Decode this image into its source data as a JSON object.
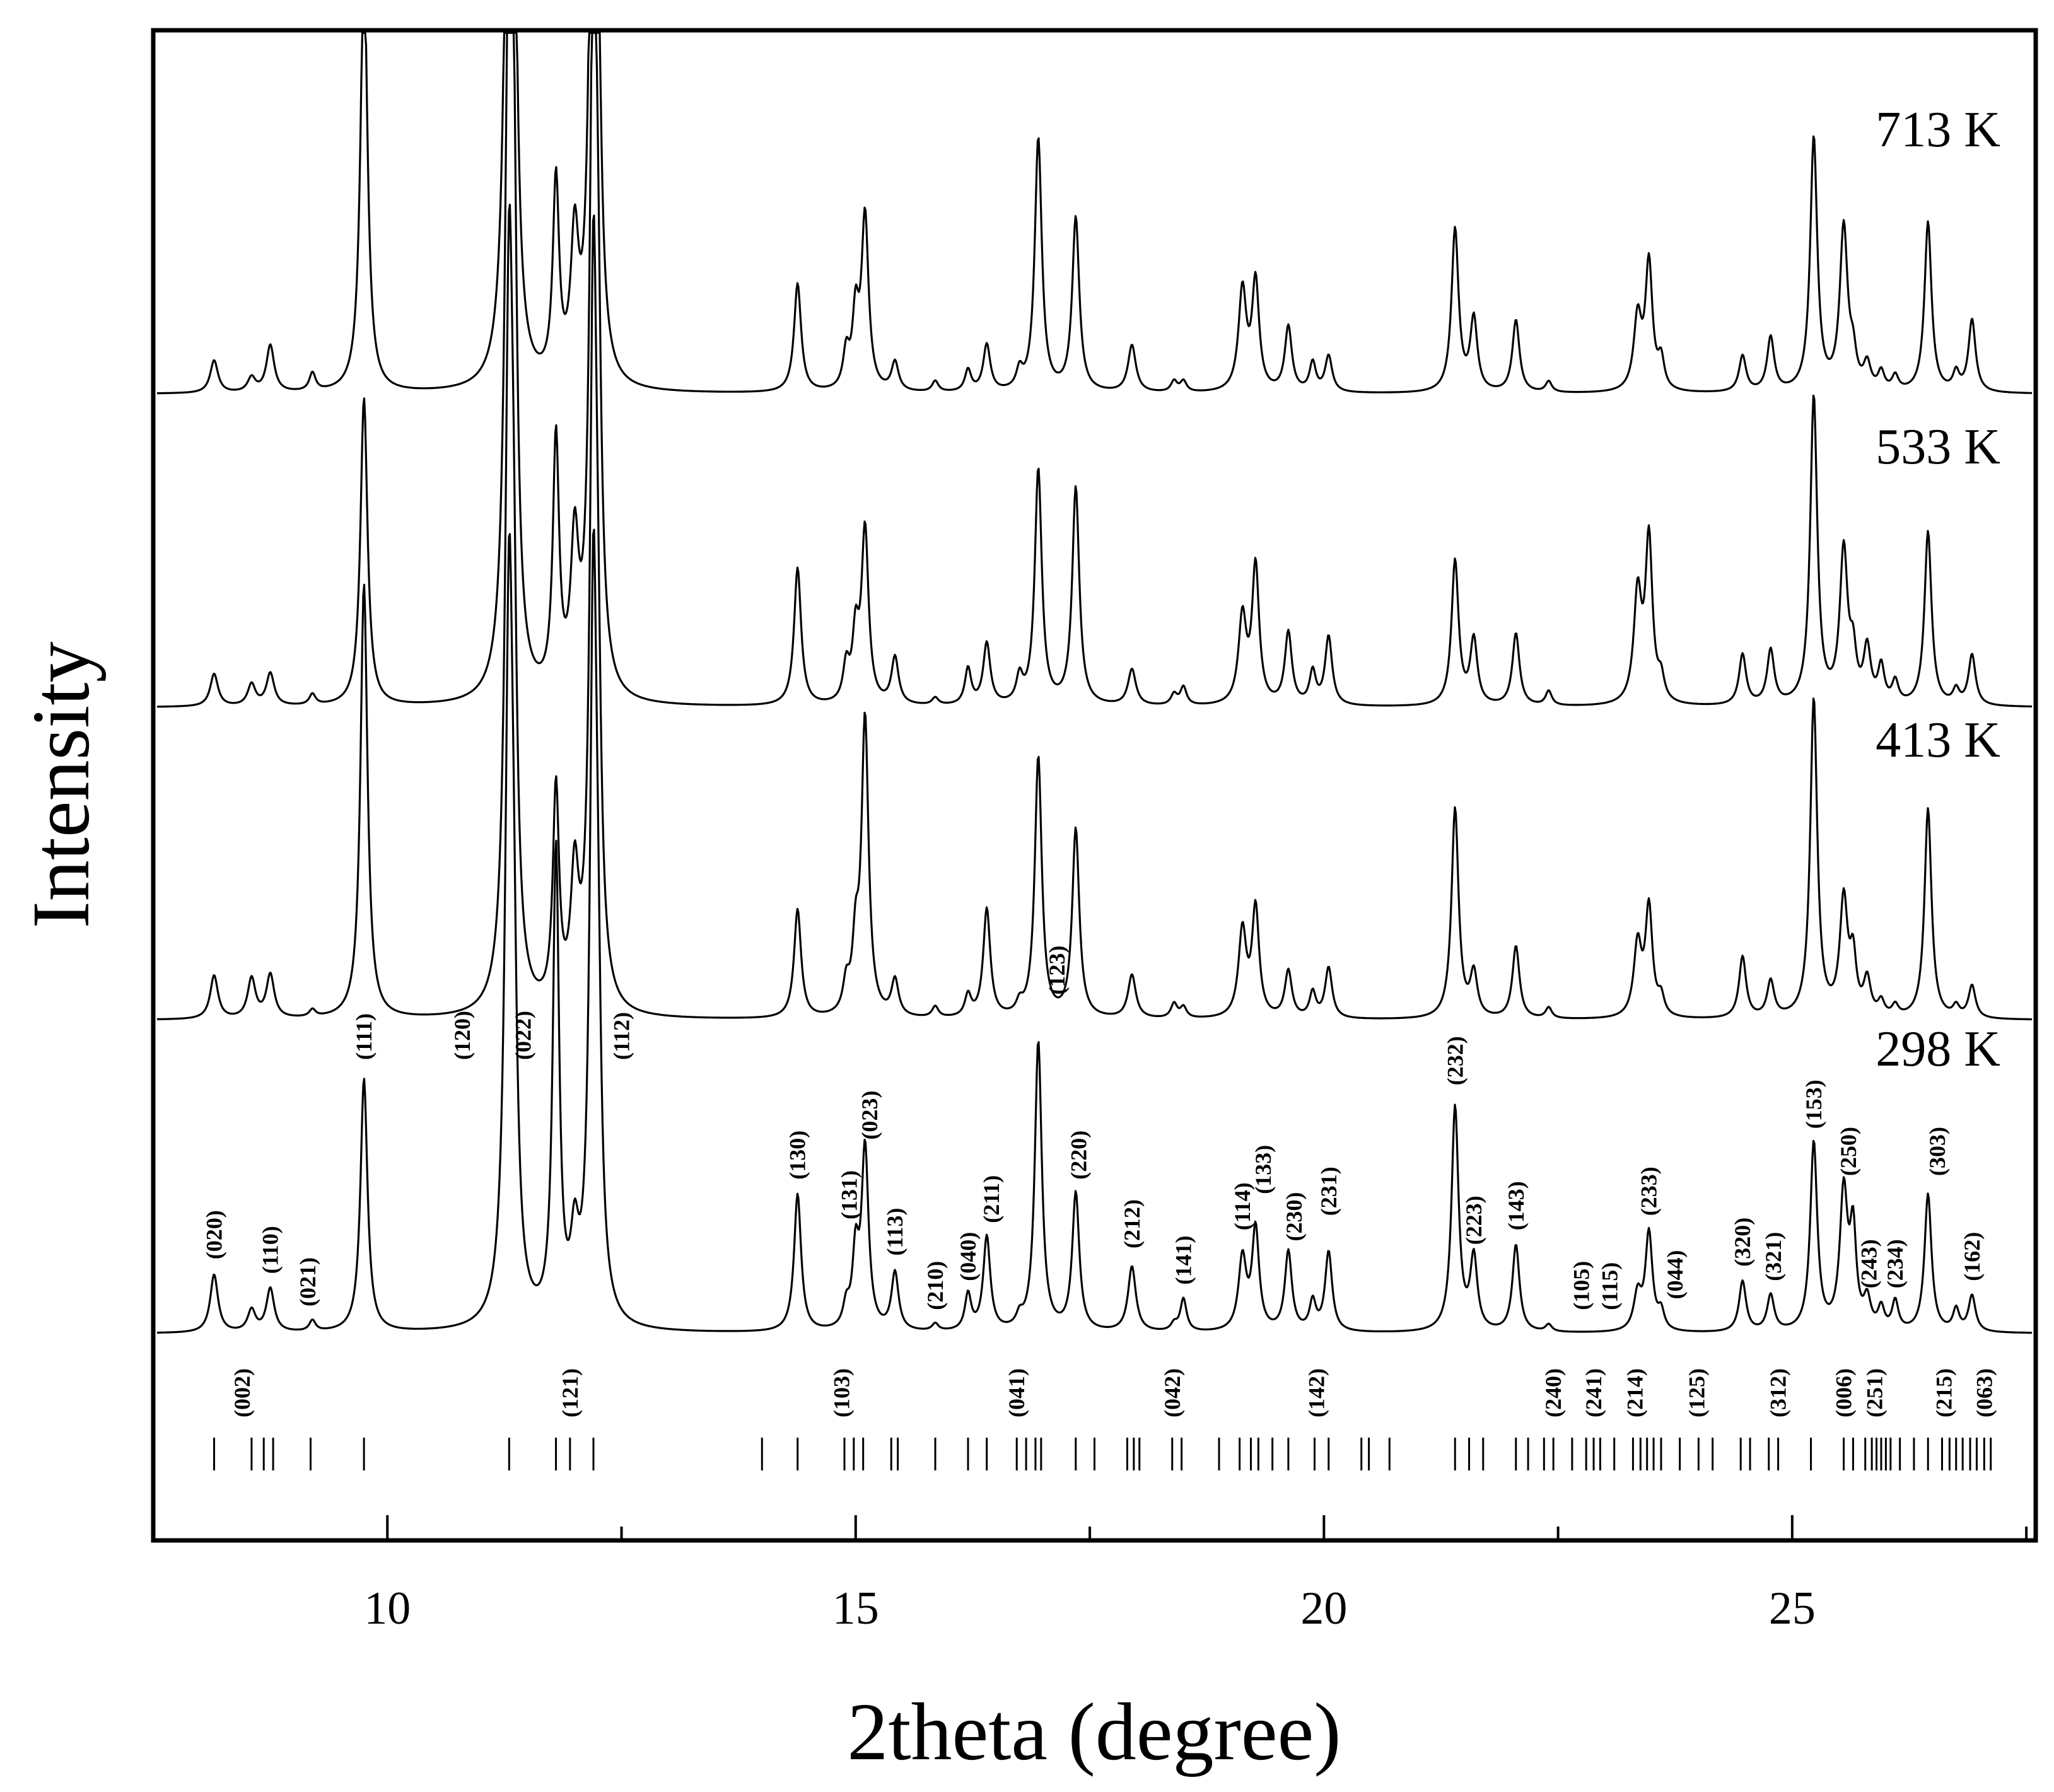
{
  "chart_data": {
    "type": "line",
    "title": "",
    "xlabel": "2theta (degree)",
    "ylabel": "Intensity",
    "xlim": [
      7.5,
      27.6
    ],
    "x_ticks": [
      10,
      15,
      20,
      25
    ],
    "x_ticklabels": [
      "10",
      "15",
      "20",
      "25"
    ],
    "y_ticks_shown": false,
    "grid": false,
    "legend": "none",
    "series": [
      {
        "name": "713 K",
        "offset": 3
      },
      {
        "name": "533 K",
        "offset": 2
      },
      {
        "name": "413 K",
        "offset": 1
      },
      {
        "name": "298 K",
        "offset": 0
      }
    ],
    "peaks": [
      {
        "x": 8.15,
        "i": [
          0.09,
          0.09,
          0.12,
          0.16
        ],
        "w": 0.05
      },
      {
        "x": 8.55,
        "i": [
          0.04,
          0.06,
          0.11,
          0.06
        ],
        "w": 0.05
      },
      {
        "x": 8.75,
        "i": [
          0.13,
          0.09,
          0.12,
          0.12
        ],
        "w": 0.05
      },
      {
        "x": 9.2,
        "i": [
          0.05,
          0.03,
          0.02,
          0.03
        ],
        "w": 0.04
      },
      {
        "x": 9.75,
        "i": [
          1.2,
          0.85,
          1.2,
          0.7
        ],
        "w": 0.045
      },
      {
        "x": 11.3,
        "i": [
          2.0,
          2.0,
          2.0,
          2.0
        ],
        "w": 0.05
      },
      {
        "x": 11.35,
        "i": [
          0.8,
          0.9,
          0.6,
          0.5
        ],
        "w": 0.04
      },
      {
        "x": 11.8,
        "i": [
          0.55,
          0.7,
          0.6,
          1.3
        ],
        "w": 0.04
      },
      {
        "x": 12.0,
        "i": [
          0.38,
          0.4,
          0.35,
          0.2
        ],
        "w": 0.05
      },
      {
        "x": 12.2,
        "i": [
          2.0,
          2.0,
          2.0,
          2.0
        ],
        "w": 0.045
      },
      {
        "x": 12.25,
        "i": [
          0.45,
          0.6,
          0.5,
          0.5
        ],
        "w": 0.04
      },
      {
        "x": 14.38,
        "i": [
          0.3,
          0.38,
          0.3,
          0.38
        ],
        "w": 0.045
      },
      {
        "x": 14.9,
        "i": [
          0.1,
          0.1,
          0.08,
          0.06
        ],
        "w": 0.04
      },
      {
        "x": 15.0,
        "i": [
          0.2,
          0.18,
          0.18,
          0.2
        ],
        "w": 0.04
      },
      {
        "x": 15.1,
        "i": [
          0.48,
          0.48,
          0.82,
          0.5
        ],
        "w": 0.045
      },
      {
        "x": 15.42,
        "i": [
          0.08,
          0.13,
          0.1,
          0.16
        ],
        "w": 0.045
      },
      {
        "x": 15.85,
        "i": [
          0.03,
          0.02,
          0.03,
          0.02
        ],
        "w": 0.04
      },
      {
        "x": 16.2,
        "i": [
          0.06,
          0.1,
          0.06,
          0.1
        ],
        "w": 0.04
      },
      {
        "x": 16.4,
        "i": [
          0.13,
          0.17,
          0.3,
          0.26
        ],
        "w": 0.045
      },
      {
        "x": 16.75,
        "i": [
          0.05,
          0.07,
          0.03,
          0.03
        ],
        "w": 0.04
      },
      {
        "x": 16.95,
        "i": [
          0.7,
          0.65,
          0.72,
          0.8
        ],
        "w": 0.045
      },
      {
        "x": 17.35,
        "i": [
          0.48,
          0.6,
          0.52,
          0.38
        ],
        "w": 0.045
      },
      {
        "x": 17.95,
        "i": [
          0.13,
          0.1,
          0.12,
          0.18
        ],
        "w": 0.05
      },
      {
        "x": 18.4,
        "i": [
          0.03,
          0.03,
          0.04,
          0.02
        ],
        "w": 0.04
      },
      {
        "x": 18.5,
        "i": [
          0.03,
          0.05,
          0.03,
          0.09
        ],
        "w": 0.04
      },
      {
        "x": 19.13,
        "i": [
          0.28,
          0.24,
          0.24,
          0.2
        ],
        "w": 0.05
      },
      {
        "x": 19.27,
        "i": [
          0.3,
          0.38,
          0.3,
          0.28
        ],
        "w": 0.045
      },
      {
        "x": 19.62,
        "i": [
          0.18,
          0.2,
          0.13,
          0.22
        ],
        "w": 0.045
      },
      {
        "x": 19.88,
        "i": [
          0.08,
          0.09,
          0.07,
          0.08
        ],
        "w": 0.04
      },
      {
        "x": 20.05,
        "i": [
          0.1,
          0.19,
          0.14,
          0.22
        ],
        "w": 0.045
      },
      {
        "x": 21.4,
        "i": [
          0.45,
          0.4,
          0.58,
          0.62
        ],
        "w": 0.045
      },
      {
        "x": 21.6,
        "i": [
          0.2,
          0.18,
          0.12,
          0.2
        ],
        "w": 0.045
      },
      {
        "x": 22.05,
        "i": [
          0.2,
          0.2,
          0.2,
          0.24
        ],
        "w": 0.045
      },
      {
        "x": 22.4,
        "i": [
          0.03,
          0.04,
          0.03,
          0.02
        ],
        "w": 0.04
      },
      {
        "x": 23.35,
        "i": [
          0.2,
          0.3,
          0.2,
          0.1
        ],
        "w": 0.05
      },
      {
        "x": 23.47,
        "i": [
          0.35,
          0.45,
          0.3,
          0.27
        ],
        "w": 0.045
      },
      {
        "x": 23.6,
        "i": [
          0.08,
          0.06,
          0.05,
          0.05
        ],
        "w": 0.04
      },
      {
        "x": 24.47,
        "i": [
          0.1,
          0.14,
          0.17,
          0.14
        ],
        "w": 0.045
      },
      {
        "x": 24.77,
        "i": [
          0.15,
          0.15,
          0.1,
          0.1
        ],
        "w": 0.045
      },
      {
        "x": 25.23,
        "i": [
          0.7,
          0.85,
          0.88,
          0.52
        ],
        "w": 0.045
      },
      {
        "x": 25.55,
        "i": [
          0.45,
          0.42,
          0.32,
          0.38
        ],
        "w": 0.05
      },
      {
        "x": 25.65,
        "i": [
          0.08,
          0.12,
          0.15,
          0.26
        ],
        "w": 0.04
      },
      {
        "x": 25.8,
        "i": [
          0.07,
          0.15,
          0.1,
          0.08
        ],
        "w": 0.045
      },
      {
        "x": 25.95,
        "i": [
          0.05,
          0.1,
          0.04,
          0.06
        ],
        "w": 0.04
      },
      {
        "x": 26.1,
        "i": [
          0.04,
          0.06,
          0.03,
          0.08
        ],
        "w": 0.04
      },
      {
        "x": 26.45,
        "i": [
          0.47,
          0.48,
          0.58,
          0.38
        ],
        "w": 0.045
      },
      {
        "x": 26.75,
        "i": [
          0.05,
          0.04,
          0.03,
          0.06
        ],
        "w": 0.04
      },
      {
        "x": 26.92,
        "i": [
          0.2,
          0.14,
          0.09,
          0.1
        ],
        "w": 0.045
      }
    ],
    "reflection_ticks_x": [
      8.15,
      8.55,
      8.68,
      8.78,
      9.18,
      9.75,
      11.3,
      11.8,
      11.95,
      12.2,
      14.0,
      14.38,
      14.88,
      14.98,
      15.08,
      15.38,
      15.45,
      15.85,
      16.2,
      16.4,
      16.72,
      16.82,
      16.92,
      16.98,
      17.35,
      17.55,
      17.9,
      17.97,
      18.03,
      18.38,
      18.48,
      18.88,
      19.1,
      19.22,
      19.3,
      19.45,
      19.62,
      19.9,
      20.05,
      20.4,
      20.48,
      20.7,
      21.4,
      21.55,
      21.7,
      22.05,
      22.18,
      22.35,
      22.45,
      22.65,
      22.8,
      22.88,
      22.95,
      23.1,
      23.3,
      23.38,
      23.45,
      23.52,
      23.6,
      23.8,
      24.0,
      24.15,
      24.45,
      24.55,
      24.75,
      24.85,
      25.2,
      25.55,
      25.65,
      25.78,
      25.85,
      25.9,
      25.95,
      26.0,
      26.05,
      26.15,
      26.3,
      26.45,
      26.6,
      26.68,
      26.75,
      26.82,
      26.9,
      26.97,
      27.05,
      27.12
    ],
    "hkl_labels_upper": [
      {
        "text": "(020)",
        "x": 8.15,
        "h": 0.17
      },
      {
        "text": "(110)",
        "x": 8.75,
        "h": 0.13
      },
      {
        "text": "(021)",
        "x": 9.15,
        "h": 0.04
      },
      {
        "text": "(111)",
        "x": 9.75,
        "h": 0.72
      },
      {
        "text": "(120)",
        "x": 10.8,
        "h": 0.72
      },
      {
        "text": "(022)",
        "x": 11.45,
        "h": 0.72
      },
      {
        "text": "(112)",
        "x": 12.5,
        "h": 0.72
      },
      {
        "text": "(130)",
        "x": 14.38,
        "h": 0.39
      },
      {
        "text": "(131)",
        "x": 14.93,
        "h": 0.28
      },
      {
        "text": "(023)",
        "x": 15.15,
        "h": 0.5
      },
      {
        "text": "(113)",
        "x": 15.42,
        "h": 0.18
      },
      {
        "text": "(210)",
        "x": 15.85,
        "h": 0.03
      },
      {
        "text": "(040)",
        "x": 16.2,
        "h": 0.11
      },
      {
        "text": "(211)",
        "x": 16.45,
        "h": 0.27
      },
      {
        "text": "(123)",
        "x": 17.15,
        "h": 0.9
      },
      {
        "text": "(220)",
        "x": 17.38,
        "h": 0.39
      },
      {
        "text": "(212)",
        "x": 17.95,
        "h": 0.2
      },
      {
        "text": "(141)",
        "x": 18.5,
        "h": 0.1
      },
      {
        "text": "(114)",
        "x": 19.13,
        "h": 0.25
      },
      {
        "text": "(133)",
        "x": 19.35,
        "h": 0.35
      },
      {
        "text": "(230)",
        "x": 19.68,
        "h": 0.22
      },
      {
        "text": "(231)",
        "x": 20.05,
        "h": 0.29
      },
      {
        "text": "(232)",
        "x": 21.4,
        "h": 0.65
      },
      {
        "text": "(223)",
        "x": 21.6,
        "h": 0.21
      },
      {
        "text": "(143)",
        "x": 22.05,
        "h": 0.25
      },
      {
        "text": "(105)",
        "x": 22.75,
        "h": 0.03
      },
      {
        "text": "(115)",
        "x": 23.05,
        "h": 0.03
      },
      {
        "text": "(233)",
        "x": 23.47,
        "h": 0.29
      },
      {
        "text": "(044)",
        "x": 23.75,
        "h": 0.06
      },
      {
        "text": "(320)",
        "x": 24.47,
        "h": 0.15
      },
      {
        "text": "(321)",
        "x": 24.8,
        "h": 0.11
      },
      {
        "text": "(153)",
        "x": 25.23,
        "h": 0.53
      },
      {
        "text": "(250)",
        "x": 25.6,
        "h": 0.4
      },
      {
        "text": "(243)",
        "x": 25.82,
        "h": 0.09
      },
      {
        "text": "(234)",
        "x": 26.1,
        "h": 0.09
      },
      {
        "text": "(303)",
        "x": 26.55,
        "h": 0.4
      },
      {
        "text": "(162)",
        "x": 26.92,
        "h": 0.11
      }
    ],
    "hkl_labels_lower": [
      {
        "text": "(002)",
        "x": 8.45
      },
      {
        "text": "(121)",
        "x": 11.95
      },
      {
        "text": "(103)",
        "x": 14.85
      },
      {
        "text": "(041)",
        "x": 16.72
      },
      {
        "text": "(042)",
        "x": 18.38
      },
      {
        "text": "(142)",
        "x": 19.92
      },
      {
        "text": "(240)",
        "x": 22.45
      },
      {
        "text": "(241)",
        "x": 22.88
      },
      {
        "text": "(214)",
        "x": 23.32
      },
      {
        "text": "(125)",
        "x": 23.98
      },
      {
        "text": "(312)",
        "x": 24.85
      },
      {
        "text": "(006)",
        "x": 25.55
      },
      {
        "text": "(251)",
        "x": 25.88
      },
      {
        "text": "(215)",
        "x": 26.62
      },
      {
        "text": "(063)",
        "x": 27.05
      }
    ]
  }
}
